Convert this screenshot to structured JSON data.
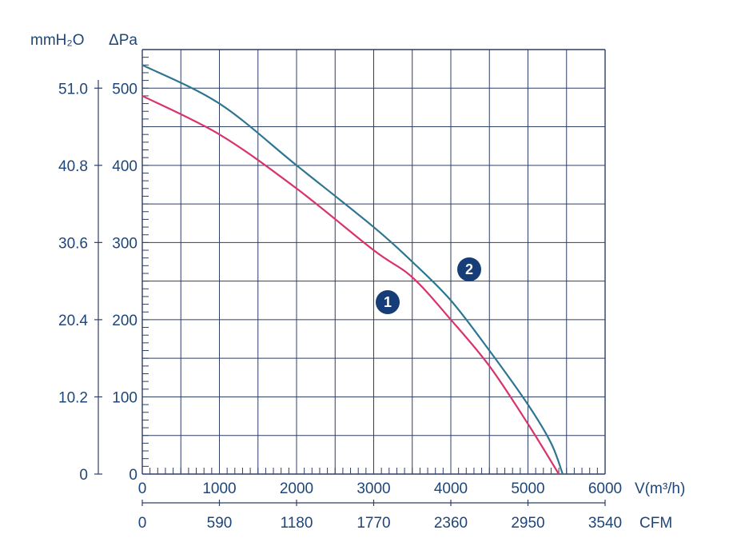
{
  "chart_data": {
    "type": "line",
    "x_unit_label": "V(m³/h)",
    "x2_unit_label": "CFM",
    "y_unit_label": "ΔPa",
    "y2_unit_label": "mmH₂O",
    "x_ticks": [
      "0",
      "1000",
      "2000",
      "3000",
      "4000",
      "5000",
      "6000"
    ],
    "x2_ticks": [
      "0",
      "590",
      "1180",
      "1770",
      "2360",
      "2950",
      "3540"
    ],
    "y_ticks": [
      "0",
      "100",
      "200",
      "300",
      "400",
      "500"
    ],
    "y2_ticks": [
      "0",
      "10.2",
      "20.4",
      "30.6",
      "40.8",
      "51.0"
    ],
    "xlim": [
      0,
      6000
    ],
    "ylim": [
      0,
      550
    ],
    "grid": true,
    "series": [
      {
        "name": "1",
        "color": "#d9336b",
        "x": [
          0,
          1000,
          2000,
          3000,
          3500,
          4000,
          4500,
          5000,
          5400
        ],
        "y": [
          490,
          440,
          370,
          290,
          255,
          200,
          140,
          65,
          0
        ]
      },
      {
        "name": "2",
        "color": "#2e7591",
        "x": [
          0,
          1000,
          2000,
          3000,
          3500,
          4000,
          4500,
          5000,
          5300,
          5450
        ],
        "y": [
          530,
          480,
          400,
          320,
          275,
          225,
          160,
          90,
          40,
          0
        ]
      }
    ]
  },
  "colors": {
    "grid": "#2f3f66",
    "text": "#1e4678",
    "marker_fill": "#163d78"
  }
}
